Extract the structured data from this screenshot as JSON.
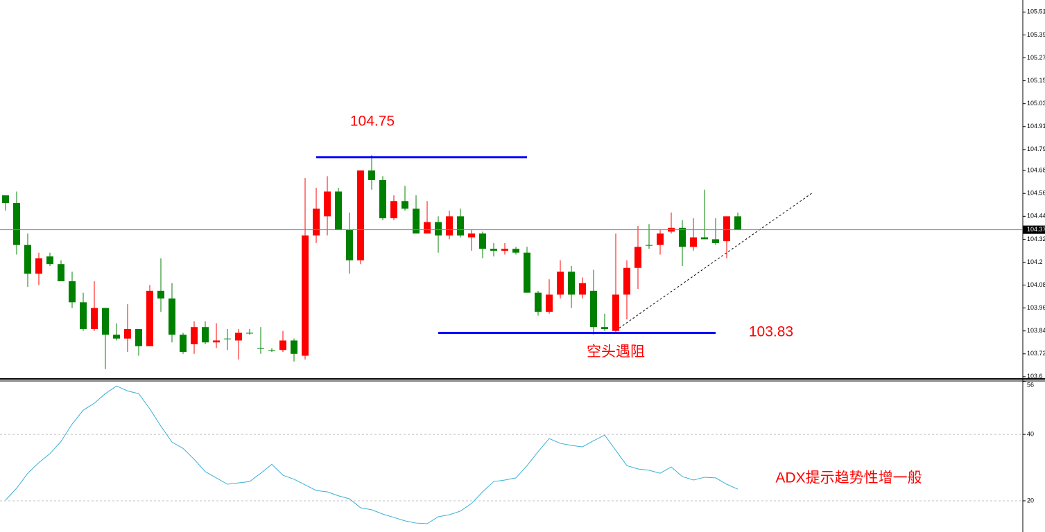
{
  "chart_data": [
    {
      "type": "candlestick",
      "up_color": "#ff0000",
      "down_color": "#008000",
      "open": [
        104.55,
        104.51,
        104.29,
        104.14,
        104.23,
        104.19,
        104.1,
        103.99,
        103.85,
        103.96,
        103.82,
        103.8,
        103.85,
        103.76,
        104.05,
        104.01,
        103.82,
        103.77,
        103.86,
        103.78,
        103.8,
        103.79,
        103.83,
        103.75,
        103.74,
        103.74,
        103.79,
        103.71,
        104.34,
        104.44,
        104.57,
        104.37,
        104.21,
        104.68,
        104.63,
        104.43,
        104.52,
        104.48,
        104.35,
        104.41,
        104.34,
        104.44,
        104.33,
        104.35,
        104.27,
        104.26,
        104.27,
        104.25,
        104.04,
        103.94,
        104.03,
        104.15,
        104.03,
        104.05,
        103.86,
        103.84,
        104.03,
        104.17,
        104.29,
        104.29,
        104.36,
        104.38,
        104.28,
        104.33,
        104.32,
        104.31,
        104.44
      ],
      "high": [
        104.55,
        104.57,
        104.35,
        104.25,
        104.25,
        104.21,
        104.15,
        104.04,
        104.1,
        103.96,
        103.88,
        103.98,
        103.85,
        104.08,
        104.22,
        104.09,
        103.83,
        103.89,
        103.89,
        103.88,
        103.85,
        103.85,
        103.85,
        103.86,
        103.75,
        103.84,
        103.8,
        104.64,
        104.59,
        104.65,
        104.59,
        104.46,
        104.68,
        104.76,
        104.65,
        104.55,
        104.6,
        104.55,
        104.52,
        104.44,
        104.47,
        104.48,
        104.37,
        104.36,
        104.3,
        104.3,
        104.28,
        104.28,
        104.05,
        104.11,
        104.21,
        104.18,
        104.12,
        104.16,
        103.93,
        104.35,
        104.21,
        104.39,
        104.4,
        104.37,
        104.46,
        104.42,
        104.43,
        104.58,
        104.43,
        104.44,
        104.46
      ],
      "low": [
        104.47,
        104.24,
        104.07,
        104.08,
        104.18,
        104.1,
        103.96,
        103.84,
        103.84,
        103.64,
        103.79,
        103.73,
        103.71,
        103.76,
        103.94,
        103.78,
        103.72,
        103.72,
        103.77,
        103.75,
        103.74,
        103.69,
        103.82,
        103.72,
        103.73,
        103.73,
        103.68,
        103.69,
        104.3,
        104.34,
        104.37,
        104.14,
        104.19,
        104.58,
        104.42,
        104.42,
        104.47,
        104.35,
        104.35,
        104.25,
        104.32,
        104.33,
        104.26,
        104.22,
        104.23,
        104.24,
        104.24,
        104.04,
        103.92,
        103.93,
        104.01,
        103.96,
        104.01,
        103.82,
        103.84,
        103.83,
        103.9,
        104.06,
        104.27,
        104.24,
        104.35,
        104.18,
        104.26,
        104.32,
        104.29,
        104.22,
        104.38
      ],
      "close": [
        104.51,
        104.29,
        104.14,
        104.22,
        104.19,
        104.1,
        103.99,
        103.85,
        103.96,
        103.82,
        103.8,
        103.85,
        103.76,
        104.05,
        104.01,
        103.82,
        103.73,
        103.86,
        103.78,
        103.79,
        103.8,
        103.83,
        103.83,
        103.75,
        103.74,
        103.79,
        103.72,
        104.34,
        104.48,
        104.57,
        104.37,
        104.21,
        104.68,
        104.63,
        104.43,
        104.52,
        104.48,
        104.35,
        104.41,
        104.34,
        104.44,
        104.34,
        104.35,
        104.27,
        104.26,
        104.27,
        104.25,
        104.04,
        103.94,
        104.03,
        104.15,
        104.03,
        104.09,
        103.86,
        103.85,
        104.03,
        104.17,
        104.28,
        104.29,
        104.35,
        104.38,
        104.28,
        104.33,
        104.32,
        104.3,
        104.44,
        104.37
      ],
      "ylim": [
        103.585,
        105.573
      ],
      "yticks": [
        103.6,
        103.72,
        103.84,
        103.96,
        104.08,
        104.2,
        104.32,
        104.44,
        104.56,
        104.68,
        104.79,
        104.91,
        105.03,
        105.15,
        105.27,
        105.39,
        105.51
      ],
      "current_price": 104.37,
      "levels": [
        104.75,
        103.83
      ],
      "level_color": "#0000ff",
      "annotation": "空头遇阻"
    },
    {
      "type": "line",
      "series": [
        {
          "name": "ADX",
          "color": "#3aaed8",
          "values": [
            20.2,
            23.8,
            28.3,
            31.5,
            34.2,
            37.9,
            43.1,
            47.3,
            49.4,
            52.3,
            54.6,
            53.1,
            52.3,
            47.7,
            42.5,
            37.7,
            35.8,
            32.5,
            28.8,
            26.9,
            25.0,
            25.4,
            25.8,
            28.3,
            31.0,
            27.7,
            26.5,
            24.8,
            23.1,
            22.7,
            21.5,
            20.6,
            17.9,
            17.3,
            16.0,
            15.0,
            13.96,
            13.3,
            13.1,
            15.2,
            15.8,
            16.9,
            19.2,
            22.7,
            25.8,
            26.25,
            26.9,
            30.6,
            34.8,
            38.75,
            37.3,
            36.7,
            36.25,
            38.1,
            39.8,
            35.2,
            30.6,
            29.6,
            29.2,
            28.3,
            30.2,
            27.3,
            26.25,
            27.1,
            26.9,
            25.0,
            23.5
          ]
        }
      ],
      "ylim": [
        10.6,
        56.1
      ],
      "yticks": [
        20,
        40,
        56
      ],
      "grid": true,
      "annotation": "ADX提示趋势性增一般"
    }
  ]
}
